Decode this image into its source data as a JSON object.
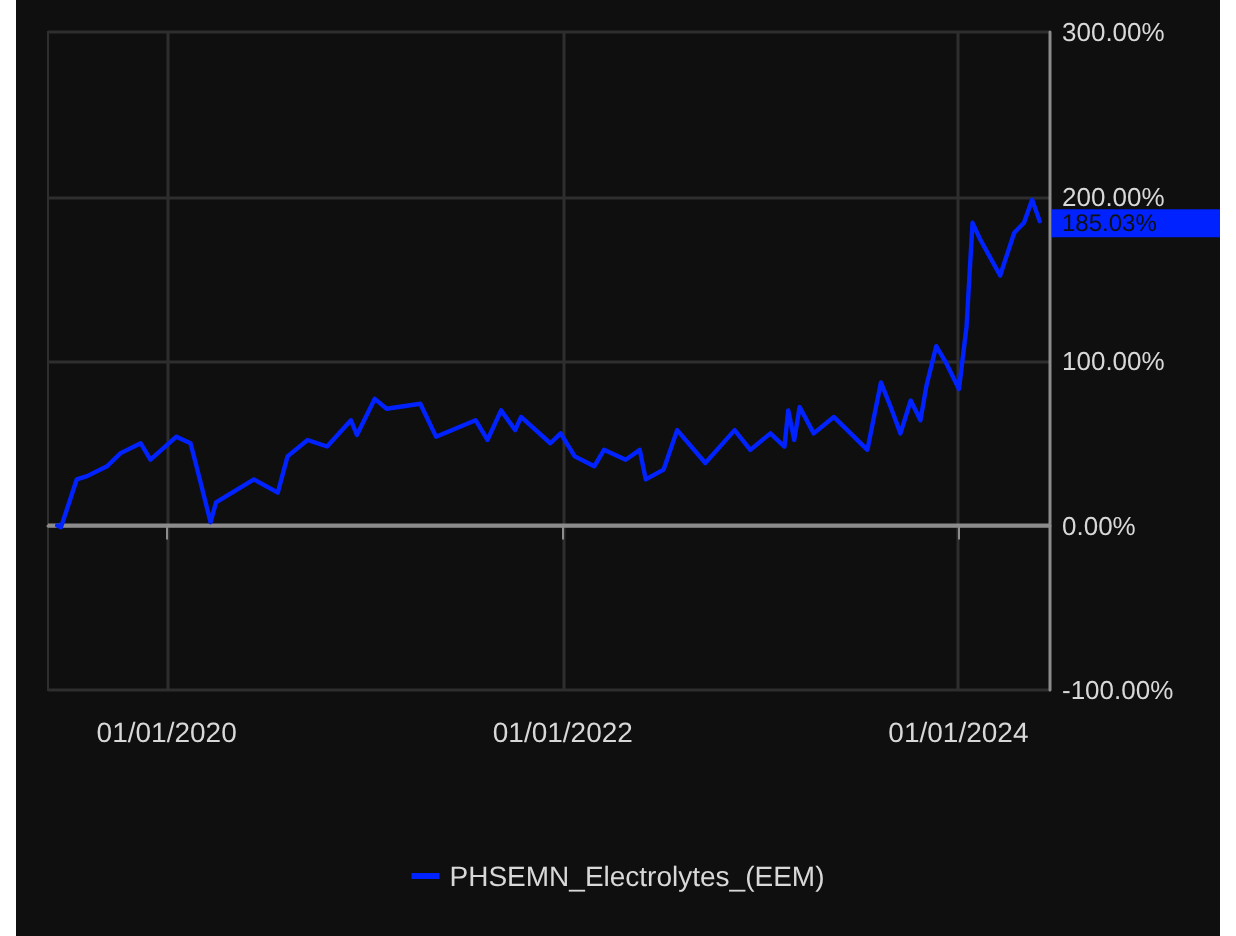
{
  "chart_data": {
    "type": "line",
    "x": [
      "2019-06-13",
      "2019-06-20",
      "2019-07-19",
      "2019-08-07",
      "2019-09-13",
      "2019-10-08",
      "2019-11-14",
      "2019-12-02",
      "2020-01-19",
      "2020-02-14",
      "2020-02-25",
      "2020-03-22",
      "2020-04-01",
      "2020-06-10",
      "2020-07-24",
      "2020-08-11",
      "2020-09-17",
      "2020-10-23",
      "2020-12-06",
      "2020-12-17",
      "2021-01-19",
      "2021-02-10",
      "2021-04-13",
      "2021-05-12",
      "2021-07-24",
      "2021-08-15",
      "2021-09-09",
      "2021-10-05",
      "2021-10-16",
      "2021-12-09",
      "2021-12-28",
      "2022-01-23",
      "2022-02-28",
      "2022-03-18",
      "2022-04-27",
      "2022-05-23",
      "2022-06-03",
      "2022-07-06",
      "2022-07-31",
      "2022-09-21",
      "2022-11-14",
      "2022-12-13",
      "2023-01-19",
      "2023-02-14",
      "2023-02-21",
      "2023-03-04",
      "2023-03-14",
      "2023-04-09",
      "2023-05-16",
      "2023-06-10",
      "2023-07-17",
      "2023-08-11",
      "2023-08-29",
      "2023-09-16",
      "2023-10-05",
      "2023-10-23",
      "2023-11-03",
      "2023-11-21",
      "2023-12-09",
      "2024-01-02",
      "2024-01-16",
      "2024-01-27",
      "2024-02-10",
      "2024-03-18",
      "2024-04-13",
      "2024-05-01",
      "2024-05-16",
      "2024-05-30"
    ],
    "series": [
      {
        "name": "PHSEMN_Electrolytes_(EEM)",
        "color": "#0022ff",
        "values": [
          0,
          -1,
          28,
          30,
          36,
          44,
          50,
          40,
          54,
          50,
          36,
          2,
          14,
          28,
          20,
          42,
          52,
          48,
          64,
          55,
          77,
          71,
          74,
          54,
          64,
          52,
          70,
          58,
          66,
          50,
          56,
          42,
          36,
          46,
          40,
          46,
          28,
          34,
          58,
          38,
          58,
          46,
          56,
          48,
          70,
          52,
          72,
          56,
          66,
          58,
          46,
          87,
          72,
          56,
          76,
          64,
          85,
          109,
          99,
          83,
          121,
          184,
          174,
          152,
          178,
          184,
          198,
          185.03
        ]
      }
    ],
    "xlim": [
      "2019-05-27",
      "2024-06-18"
    ],
    "xticks": [
      {
        "value": "2020-01-01",
        "label": "01/01/2020"
      },
      {
        "value": "2022-01-01",
        "label": "01/01/2022"
      },
      {
        "value": "2024-01-01",
        "label": "01/01/2024"
      }
    ],
    "ylim": [
      -100,
      300
    ],
    "yticks": [
      {
        "value": -100,
        "label": "-100.00%"
      },
      {
        "value": 0,
        "label": "0.00%"
      },
      {
        "value": 100,
        "label": "100.00%"
      },
      {
        "value": 200,
        "label": "200.00%"
      },
      {
        "value": 300,
        "label": "300.00%"
      }
    ],
    "ref_lines": [
      {
        "axis": "y",
        "value": 0,
        "color": "#8c8c8c"
      }
    ],
    "annotations": [
      {
        "text": "185.03%",
        "x": "2024-05-30",
        "y": 185.03
      }
    ],
    "grid": true,
    "legend": "bottom",
    "marker": "none",
    "line_style": "solid"
  }
}
